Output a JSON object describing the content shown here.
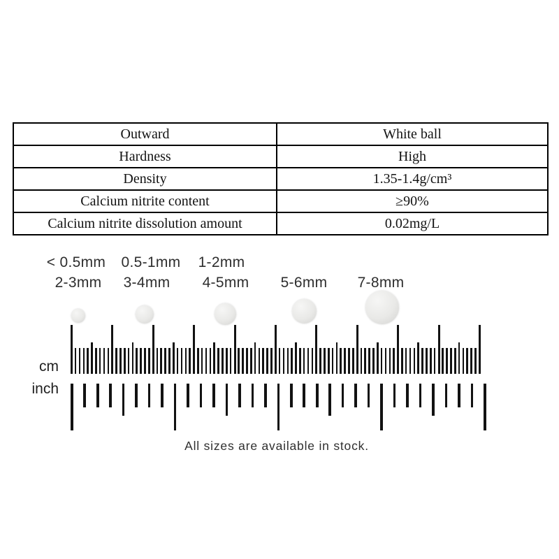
{
  "spec_table": {
    "rows": [
      {
        "label": "Outward",
        "value": "White ball"
      },
      {
        "label": "Hardness",
        "value": "High"
      },
      {
        "label": "Density",
        "value": "1.35-1.4g/cm³"
      },
      {
        "label": "Calcium nitrite content",
        "value": "≥90%"
      },
      {
        "label": "Calcium nitrite dissolution amount",
        "value": "0.02mg/L"
      }
    ]
  },
  "size_labels": {
    "row1": [
      "< 0.5mm",
      "0.5-1mm",
      "1-2mm"
    ],
    "row2": [
      "2-3mm",
      "3-4mm",
      "4-5mm",
      "5-6mm",
      "7-8mm"
    ]
  },
  "ruler": {
    "cm_label": "cm",
    "inch_label": "inch",
    "cm_units": 10,
    "mm_per_cm": 10,
    "inch_units": 4,
    "ticks_per_inch": 8,
    "tick_color": "#121212"
  },
  "footer": {
    "note": "All sizes are available in stock."
  }
}
